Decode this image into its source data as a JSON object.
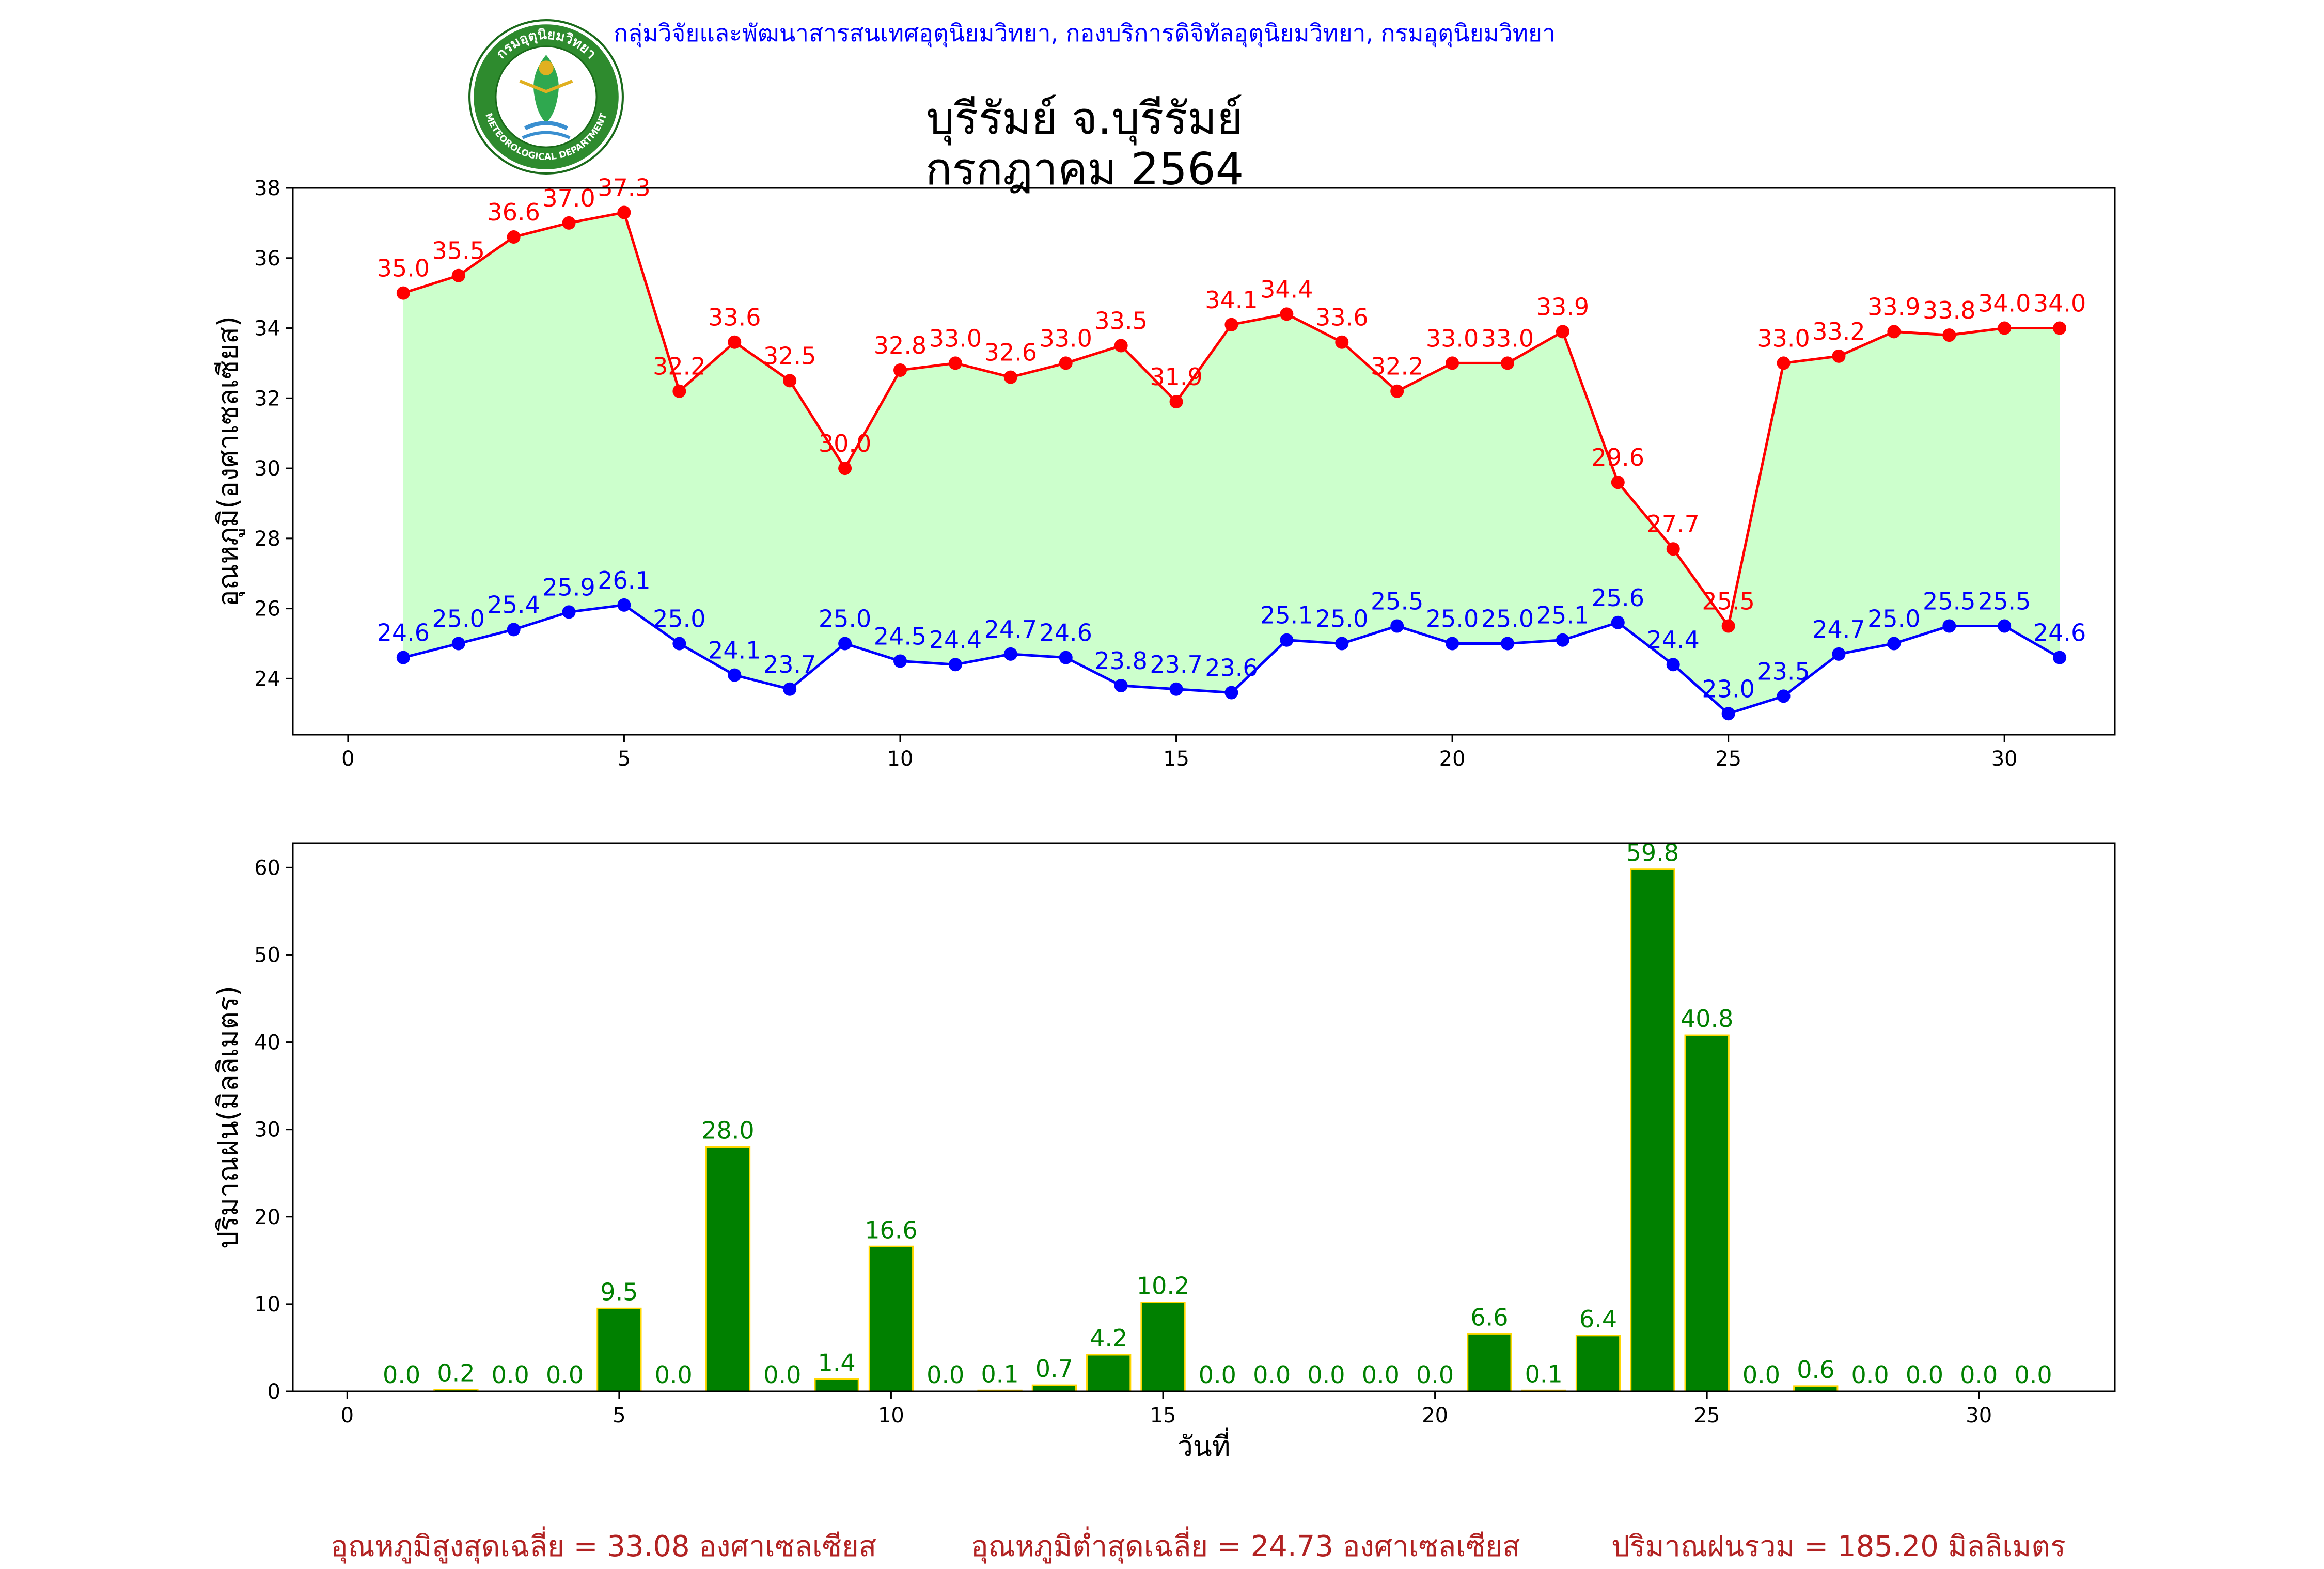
{
  "header": {
    "agency": "กลุ่มวิจัยและพัฒนาสารสนเทศอุตุนิยมวิทยา, กองบริการดิจิทัลอุตุนิยมวิทยา, กรมอุตุนิยมวิทยา",
    "station": "บุรีรัมย์ จ.บุรีรัมย์",
    "period": "กรกฎาคม 2564",
    "logo_text_top": "กรมอุตุนิยมวิทยา",
    "logo_text_bottom": "METEOROLOGICAL DEPARTMENT"
  },
  "footer": {
    "avg_max": "อุณหภูมิสูงสุดเฉลี่ย = 33.08 องศาเซลเซียส",
    "avg_min": "อุณหภูมิต่ำสุดเฉลี่ย = 24.73 องศาเซลเซียส",
    "total_rain": "ปริมาณฝนรวม = 185.20 มิลลิเมตร"
  },
  "colors": {
    "max_line": "#ff0000",
    "min_line": "#0000ff",
    "fill": "#ccffcc",
    "bar": "#008000",
    "bar_edge": "#ffd700",
    "footer": "#b22222",
    "agency": "#0000ff"
  },
  "chart_data": [
    {
      "type": "line",
      "title": "",
      "xlabel": "",
      "ylabel": "อุณหภูมิ(องศาเซลเซียส)",
      "xlim": [
        -1,
        32
      ],
      "ylim": [
        22.4,
        38
      ],
      "xticks": [
        "0",
        "5",
        "10",
        "15",
        "20",
        "25",
        "30"
      ],
      "yticks": [
        "24",
        "26",
        "28",
        "30",
        "32",
        "34",
        "36",
        "38"
      ],
      "x": [
        1,
        2,
        3,
        4,
        5,
        6,
        7,
        8,
        9,
        10,
        11,
        12,
        13,
        14,
        15,
        16,
        17,
        18,
        19,
        20,
        21,
        22,
        23,
        24,
        25,
        26,
        27,
        28,
        29,
        30,
        31
      ],
      "series": [
        {
          "values": [
            35.0,
            35.5,
            36.6,
            37.0,
            37.3,
            32.2,
            33.6,
            32.5,
            30.0,
            32.8,
            33.0,
            32.6,
            33.0,
            33.5,
            31.9,
            34.1,
            34.4,
            33.6,
            32.2,
            33.0,
            33.0,
            33.9,
            29.6,
            27.7,
            25.5,
            33.0,
            33.2,
            33.9,
            33.8,
            34.0,
            34.0
          ],
          "labels": [
            "35.0",
            "35.5",
            "36.6",
            "37.0",
            "37.3",
            "32.2",
            "33.6",
            "32.5",
            "30.0",
            "32.8",
            "33.0",
            "32.6",
            "33.0",
            "33.5",
            "31.9",
            "34.1",
            "34.4",
            "33.6",
            "32.2",
            "33.0",
            "33.0",
            "33.9",
            "29.6",
            "27.7",
            "25.5",
            "33.0",
            "33.2",
            "33.9",
            "33.8",
            "34.0",
            "34.0"
          ]
        },
        {
          "values": [
            24.6,
            25.0,
            25.4,
            25.9,
            26.1,
            25.0,
            24.1,
            23.7,
            25.0,
            24.5,
            24.4,
            24.7,
            24.6,
            23.8,
            23.7,
            23.6,
            25.1,
            25.0,
            25.5,
            25.0,
            25.0,
            25.1,
            25.6,
            24.4,
            23.0,
            23.5,
            24.7,
            25.0,
            25.5,
            25.5,
            24.6
          ],
          "labels": [
            "24.6",
            "25.0",
            "25.4",
            "25.9",
            "26.1",
            "25.0",
            "24.1",
            "23.7",
            "25.0",
            "24.5",
            "24.4",
            "24.7",
            "24.6",
            "23.8",
            "23.7",
            "23.6",
            "25.1",
            "25.0",
            "25.5",
            "25.0",
            "25.0",
            "25.1",
            "25.6",
            "24.4",
            "23.0",
            "23.5",
            "24.7",
            "25.0",
            "25.5",
            "25.5",
            "24.6"
          ]
        }
      ],
      "grid": false,
      "legend": "none"
    },
    {
      "type": "bar",
      "title": "",
      "xlabel": "วันที่",
      "ylabel": "ปริมาณฝน(มิลลิเมตร)",
      "xlim": [
        -1,
        32.5
      ],
      "ylim": [
        0,
        62.8
      ],
      "xticks": [
        "0",
        "5",
        "10",
        "15",
        "20",
        "25",
        "30"
      ],
      "yticks": [
        "0",
        "10",
        "20",
        "30",
        "40",
        "50",
        "60"
      ],
      "x": [
        1,
        2,
        3,
        4,
        5,
        6,
        7,
        8,
        9,
        10,
        11,
        12,
        13,
        14,
        15,
        16,
        17,
        18,
        19,
        20,
        21,
        22,
        23,
        24,
        25,
        26,
        27,
        28,
        29,
        30,
        31
      ],
      "values": [
        0.0,
        0.2,
        0.0,
        0.0,
        9.5,
        0.0,
        28.0,
        0.0,
        1.4,
        16.6,
        0.0,
        0.1,
        0.7,
        4.2,
        10.2,
        0.0,
        0.0,
        0.0,
        0.0,
        0.0,
        6.6,
        0.1,
        6.4,
        59.8,
        40.8,
        0.0,
        0.6,
        0.0,
        0.0,
        0.0,
        0.0
      ],
      "labels": [
        "0.0",
        "0.2",
        "0.0",
        "0.0",
        "9.5",
        "0.0",
        "28.0",
        "0.0",
        "1.4",
        "16.6",
        "0.0",
        "0.1",
        "0.7",
        "4.2",
        "10.2",
        "0.0",
        "0.0",
        "0.0",
        "0.0",
        "0.0",
        "6.6",
        "0.1",
        "6.4",
        "59.8",
        "40.8",
        "0.0",
        "0.6",
        "0.0",
        "0.0",
        "0.0",
        "0.0"
      ],
      "grid": false,
      "legend": "none"
    }
  ]
}
